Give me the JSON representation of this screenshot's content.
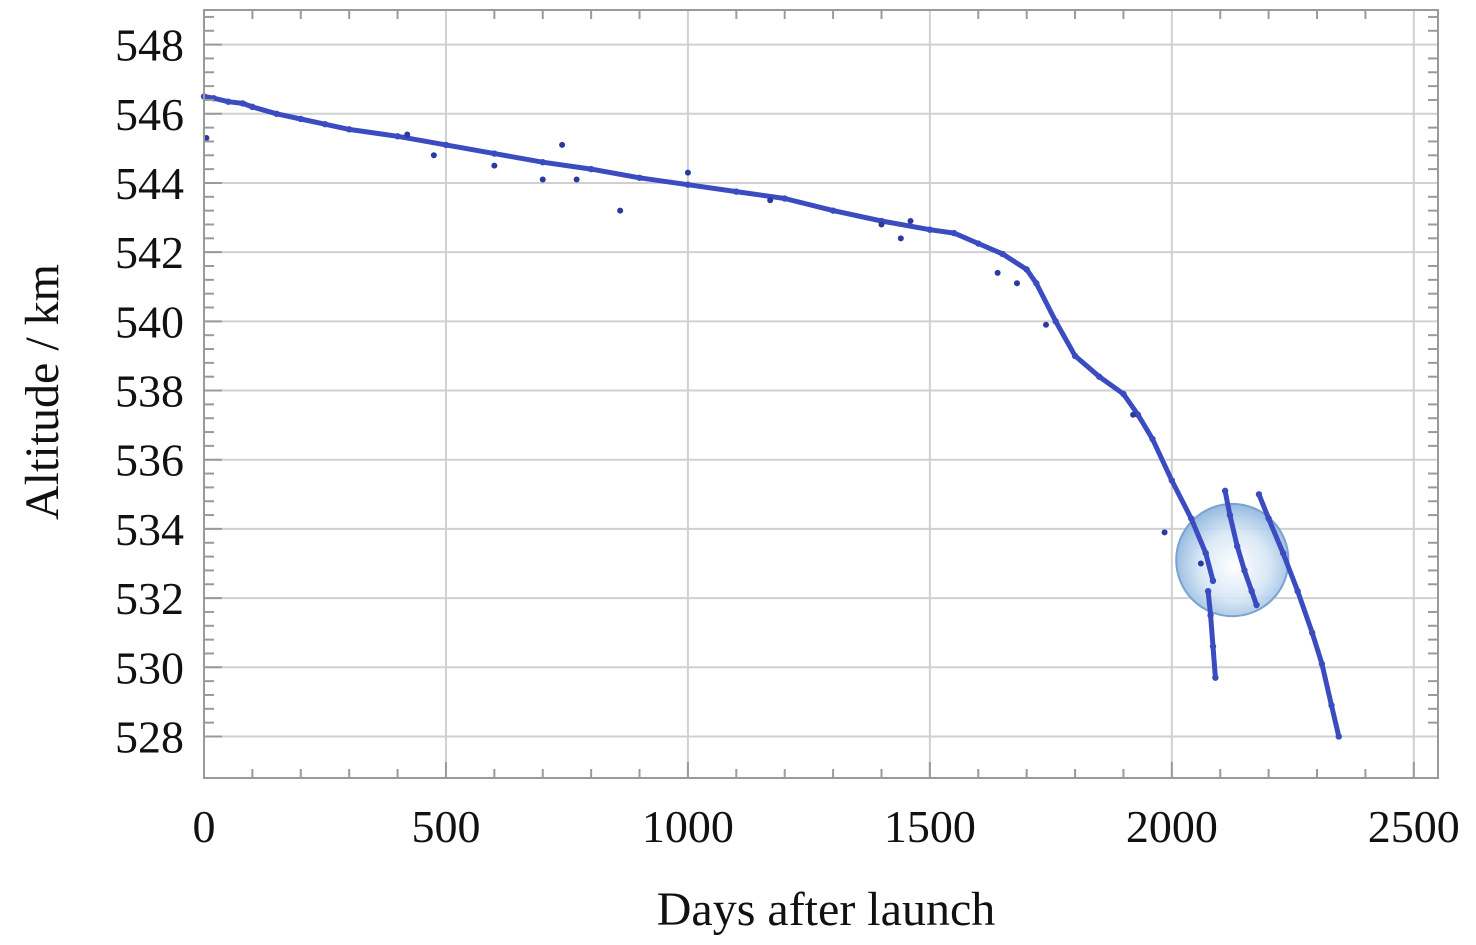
{
  "chart_data": {
    "type": "scatter",
    "xlabel": "Days after launch",
    "ylabel": "Altitude / km",
    "xlim": [
      0,
      2550
    ],
    "ylim": [
      526.8,
      549
    ],
    "xticks": [
      0,
      500,
      1000,
      1500,
      2000,
      2500
    ],
    "yticks": [
      528,
      530,
      532,
      534,
      536,
      538,
      540,
      542,
      544,
      546,
      548
    ],
    "x_minor_step": 100,
    "y_minor_step": 0.4,
    "grid": true,
    "series_color": "#3b4cc0",
    "highlight_color": "#9ec3e6",
    "series": [
      {
        "segments": [
          {
            "x": [
              0,
              20,
              50,
              80,
              100,
              150,
              200,
              250,
              300,
              400,
              500,
              600,
              700,
              800,
              900,
              1000,
              1100,
              1200,
              1300,
              1400,
              1500,
              1550,
              1600,
              1650,
              1700,
              1720,
              1760,
              1800,
              1850,
              1900,
              1930,
              1960,
              2000,
              2040,
              2070,
              2085
            ],
            "y": [
              546.5,
              546.45,
              546.35,
              546.3,
              546.2,
              546.0,
              545.85,
              545.7,
              545.55,
              545.35,
              545.1,
              544.85,
              544.6,
              544.4,
              544.15,
              543.95,
              543.75,
              543.55,
              543.2,
              542.9,
              542.65,
              542.55,
              542.25,
              541.95,
              541.5,
              541.1,
              540.0,
              539.0,
              538.4,
              537.9,
              537.3,
              536.6,
              535.4,
              534.3,
              533.3,
              532.5
            ]
          },
          {
            "x": [
              2075,
              2080,
              2085,
              2090
            ],
            "y": [
              532.2,
              531.5,
              530.6,
              529.7
            ]
          },
          {
            "x": [
              2110,
              2120,
              2135,
              2150,
              2165,
              2175
            ],
            "y": [
              535.1,
              534.4,
              533.5,
              532.8,
              532.2,
              531.8
            ]
          },
          {
            "x": [
              2180,
              2200,
              2230,
              2260,
              2290,
              2310,
              2330,
              2345
            ],
            "y": [
              535.0,
              534.3,
              533.3,
              532.2,
              531.0,
              530.1,
              528.9,
              528.0
            ]
          }
        ],
        "outliers": [
          {
            "x": 5,
            "y": 545.3
          },
          {
            "x": 420,
            "y": 545.4
          },
          {
            "x": 475,
            "y": 544.8
          },
          {
            "x": 600,
            "y": 544.5
          },
          {
            "x": 700,
            "y": 544.1
          },
          {
            "x": 740,
            "y": 545.1
          },
          {
            "x": 770,
            "y": 544.1
          },
          {
            "x": 860,
            "y": 543.2
          },
          {
            "x": 1000,
            "y": 544.3
          },
          {
            "x": 1170,
            "y": 543.5
          },
          {
            "x": 1400,
            "y": 542.8
          },
          {
            "x": 1440,
            "y": 542.4
          },
          {
            "x": 1460,
            "y": 542.9
          },
          {
            "x": 1640,
            "y": 541.4
          },
          {
            "x": 1680,
            "y": 541.1
          },
          {
            "x": 1740,
            "y": 539.9
          },
          {
            "x": 1920,
            "y": 537.3
          },
          {
            "x": 1985,
            "y": 533.9
          },
          {
            "x": 2060,
            "y": 533.0
          }
        ]
      }
    ],
    "highlight": {
      "shape": "circle",
      "center": [
        2125,
        533.1
      ],
      "radius_x": 116
    }
  }
}
